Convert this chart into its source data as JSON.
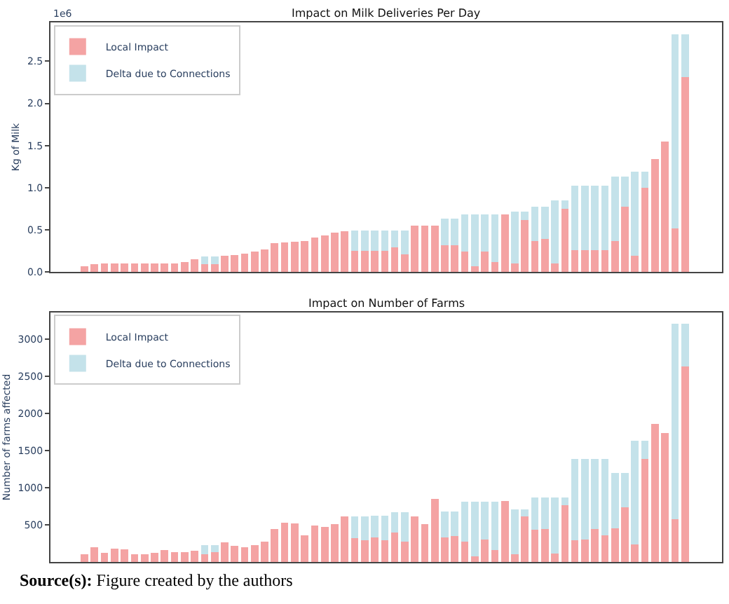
{
  "chart_data": [
    {
      "type": "bar",
      "title": "Impact on Milk Deliveries Per Day",
      "ylabel": "Kg of Milk",
      "stacked": true,
      "legend": "top left",
      "tick_labels": "y",
      "annotations": [
        "1e6"
      ],
      "categories": [
        null,
        null,
        null,
        null,
        null,
        null,
        null,
        null,
        null,
        null,
        null,
        null,
        null,
        null,
        null,
        null,
        null,
        null,
        null,
        null,
        null,
        null,
        null,
        null,
        null,
        null,
        null,
        null,
        null,
        null,
        null,
        null,
        null,
        null,
        null,
        null,
        null,
        null,
        null,
        null,
        null,
        null,
        null,
        null,
        null,
        null,
        null,
        null,
        null,
        null,
        null,
        null,
        null,
        null,
        null,
        null,
        null,
        null,
        null,
        null,
        null
      ],
      "ylim": [
        0,
        2.96
      ],
      "yticks": [
        {
          "value": 0,
          "label": "0.0"
        },
        0.5,
        {
          "value": 1,
          "label": "1.0"
        },
        1.5,
        {
          "value": 2,
          "label": "2.0"
        },
        2.5
      ],
      "series": [
        {
          "name": "Local Impact",
          "color": "#f4a3a3",
          "values": [
            0.07,
            0.09,
            0.1,
            0.1,
            0.1,
            0.1,
            0.1,
            0.1,
            0.1,
            0.1,
            0.12,
            0.15,
            0.09,
            0.09,
            0.19,
            0.2,
            0.22,
            0.24,
            0.27,
            0.34,
            0.35,
            0.36,
            0.37,
            0.41,
            0.43,
            0.47,
            0.48,
            0.25,
            0.25,
            0.25,
            0.25,
            0.29,
            0.21,
            0.55,
            0.55,
            0.55,
            0.32,
            0.32,
            0.24,
            0.07,
            0.24,
            0.12,
            0.68,
            0.1,
            0.62,
            0.37,
            0.39,
            0.1,
            0.75,
            0.26,
            0.26,
            0.26,
            0.26,
            0.37,
            0.77,
            0.19,
            1.0,
            1.34,
            1.55,
            0.52,
            2.31
          ]
        },
        {
          "name": "Delta due to Connections",
          "color": "#c4e2ea",
          "values": [
            0,
            0,
            0,
            0,
            0,
            0,
            0,
            0,
            0,
            0,
            0,
            0,
            0.09,
            0.09,
            0,
            0,
            0,
            0,
            0,
            0,
            0,
            0,
            0,
            0,
            0,
            0,
            0,
            0.24,
            0.24,
            0.24,
            0.24,
            0.2,
            0.28,
            0,
            0,
            0,
            0.31,
            0.31,
            0.44,
            0.61,
            0.44,
            0.56,
            0,
            0.62,
            0.1,
            0.4,
            0.38,
            0.75,
            0.1,
            0.76,
            0.76,
            0.76,
            0.76,
            0.76,
            0.36,
            1.0,
            0.19,
            0,
            0,
            2.3,
            0.51
          ]
        }
      ]
    },
    {
      "type": "bar",
      "title": "Impact on Number of Farms",
      "ylabel": "Number of farms affected",
      "stacked": true,
      "legend": "top left",
      "tick_labels": "y",
      "annotations": [
        "Source(s): Figure created by the authors"
      ],
      "categories": [
        null,
        null,
        null,
        null,
        null,
        null,
        null,
        null,
        null,
        null,
        null,
        null,
        null,
        null,
        null,
        null,
        null,
        null,
        null,
        null,
        null,
        null,
        null,
        null,
        null,
        null,
        null,
        null,
        null,
        null,
        null,
        null,
        null,
        null,
        null,
        null,
        null,
        null,
        null,
        null,
        null,
        null,
        null,
        null,
        null,
        null,
        null,
        null,
        null,
        null,
        null,
        null,
        null,
        null,
        null,
        null,
        null,
        null,
        null,
        null,
        null
      ],
      "ylim": [
        0,
        3360
      ],
      "yticks": [
        500,
        1000,
        1500,
        2000,
        2500,
        3000
      ],
      "series": [
        {
          "name": "Local Impact",
          "color": "#f4a3a3",
          "values": [
            100,
            200,
            120,
            180,
            170,
            100,
            100,
            120,
            160,
            130,
            130,
            150,
            100,
            130,
            260,
            220,
            200,
            230,
            270,
            440,
            530,
            520,
            360,
            490,
            470,
            510,
            610,
            320,
            290,
            330,
            290,
            400,
            270,
            610,
            510,
            850,
            330,
            350,
            270,
            80,
            300,
            160,
            820,
            100,
            610,
            430,
            440,
            110,
            760,
            290,
            300,
            440,
            360,
            450,
            740,
            240,
            1390,
            1860,
            1740,
            580,
            2630
          ]
        },
        {
          "name": "Delta due to Connections",
          "color": "#c4e2ea",
          "values": [
            0,
            0,
            0,
            0,
            0,
            0,
            0,
            0,
            0,
            0,
            0,
            0,
            130,
            100,
            0,
            0,
            0,
            0,
            0,
            0,
            0,
            0,
            0,
            0,
            0,
            0,
            0,
            290,
            320,
            290,
            330,
            270,
            400,
            0,
            0,
            0,
            350,
            330,
            540,
            730,
            510,
            650,
            0,
            610,
            100,
            440,
            430,
            760,
            110,
            1100,
            1090,
            950,
            1030,
            750,
            460,
            1390,
            240,
            0,
            0,
            2630,
            580
          ]
        }
      ]
    }
  ]
}
